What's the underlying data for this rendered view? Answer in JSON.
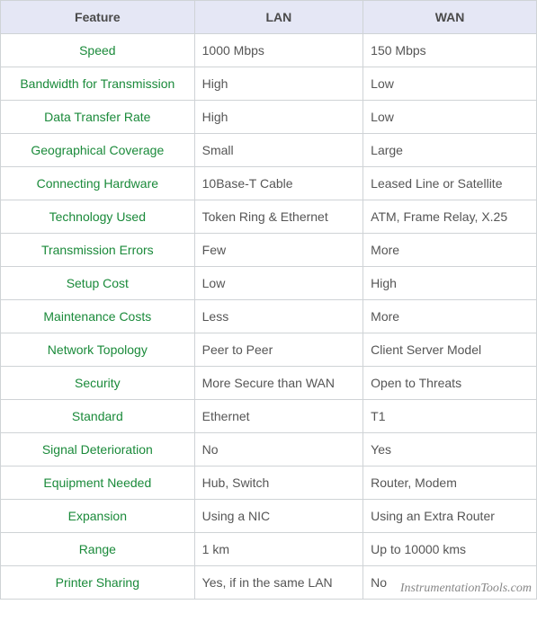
{
  "table": {
    "header_bg": "#e5e7f5",
    "border_color": "#cfd3d6",
    "feature_color": "#1a8a3a",
    "value_color": "#555555",
    "header_color": "#4a4a4a",
    "font_size": 14,
    "columns": [
      "Feature",
      "LAN",
      "WAN"
    ],
    "rows": [
      {
        "feature": "Speed",
        "lan": "1000 Mbps",
        "wan": "150 Mbps"
      },
      {
        "feature": "Bandwidth for Transmission",
        "lan": "High",
        "wan": "Low"
      },
      {
        "feature": "Data Transfer Rate",
        "lan": "High",
        "wan": "Low"
      },
      {
        "feature": "Geographical Coverage",
        "lan": "Small",
        "wan": "Large"
      },
      {
        "feature": "Connecting Hardware",
        "lan": "10Base-T Cable",
        "wan": "Leased Line or Satellite"
      },
      {
        "feature": "Technology Used",
        "lan": "Token Ring & Ethernet",
        "wan": "ATM, Frame Relay, X.25"
      },
      {
        "feature": "Transmission Errors",
        "lan": "Few",
        "wan": "More"
      },
      {
        "feature": "Setup Cost",
        "lan": "Low",
        "wan": "High"
      },
      {
        "feature": "Maintenance Costs",
        "lan": "Less",
        "wan": "More"
      },
      {
        "feature": "Network Topology",
        "lan": "Peer to Peer",
        "wan": "Client Server Model"
      },
      {
        "feature": "Security",
        "lan": "More Secure than WAN",
        "wan": "Open to Threats"
      },
      {
        "feature": "Standard",
        "lan": "Ethernet",
        "wan": "T1"
      },
      {
        "feature": "Signal Deterioration",
        "lan": "No",
        "wan": "Yes"
      },
      {
        "feature": "Equipment Needed",
        "lan": "Hub, Switch",
        "wan": "Router, Modem"
      },
      {
        "feature": "Expansion",
        "lan": "Using a NIC",
        "wan": "Using an Extra Router"
      },
      {
        "feature": "Range",
        "lan": "1 km",
        "wan": "Up to 10000 kms"
      },
      {
        "feature": "Printer Sharing",
        "lan": "Yes, if in the same LAN",
        "wan": "No"
      }
    ]
  },
  "watermark": "InstrumentationTools.com"
}
